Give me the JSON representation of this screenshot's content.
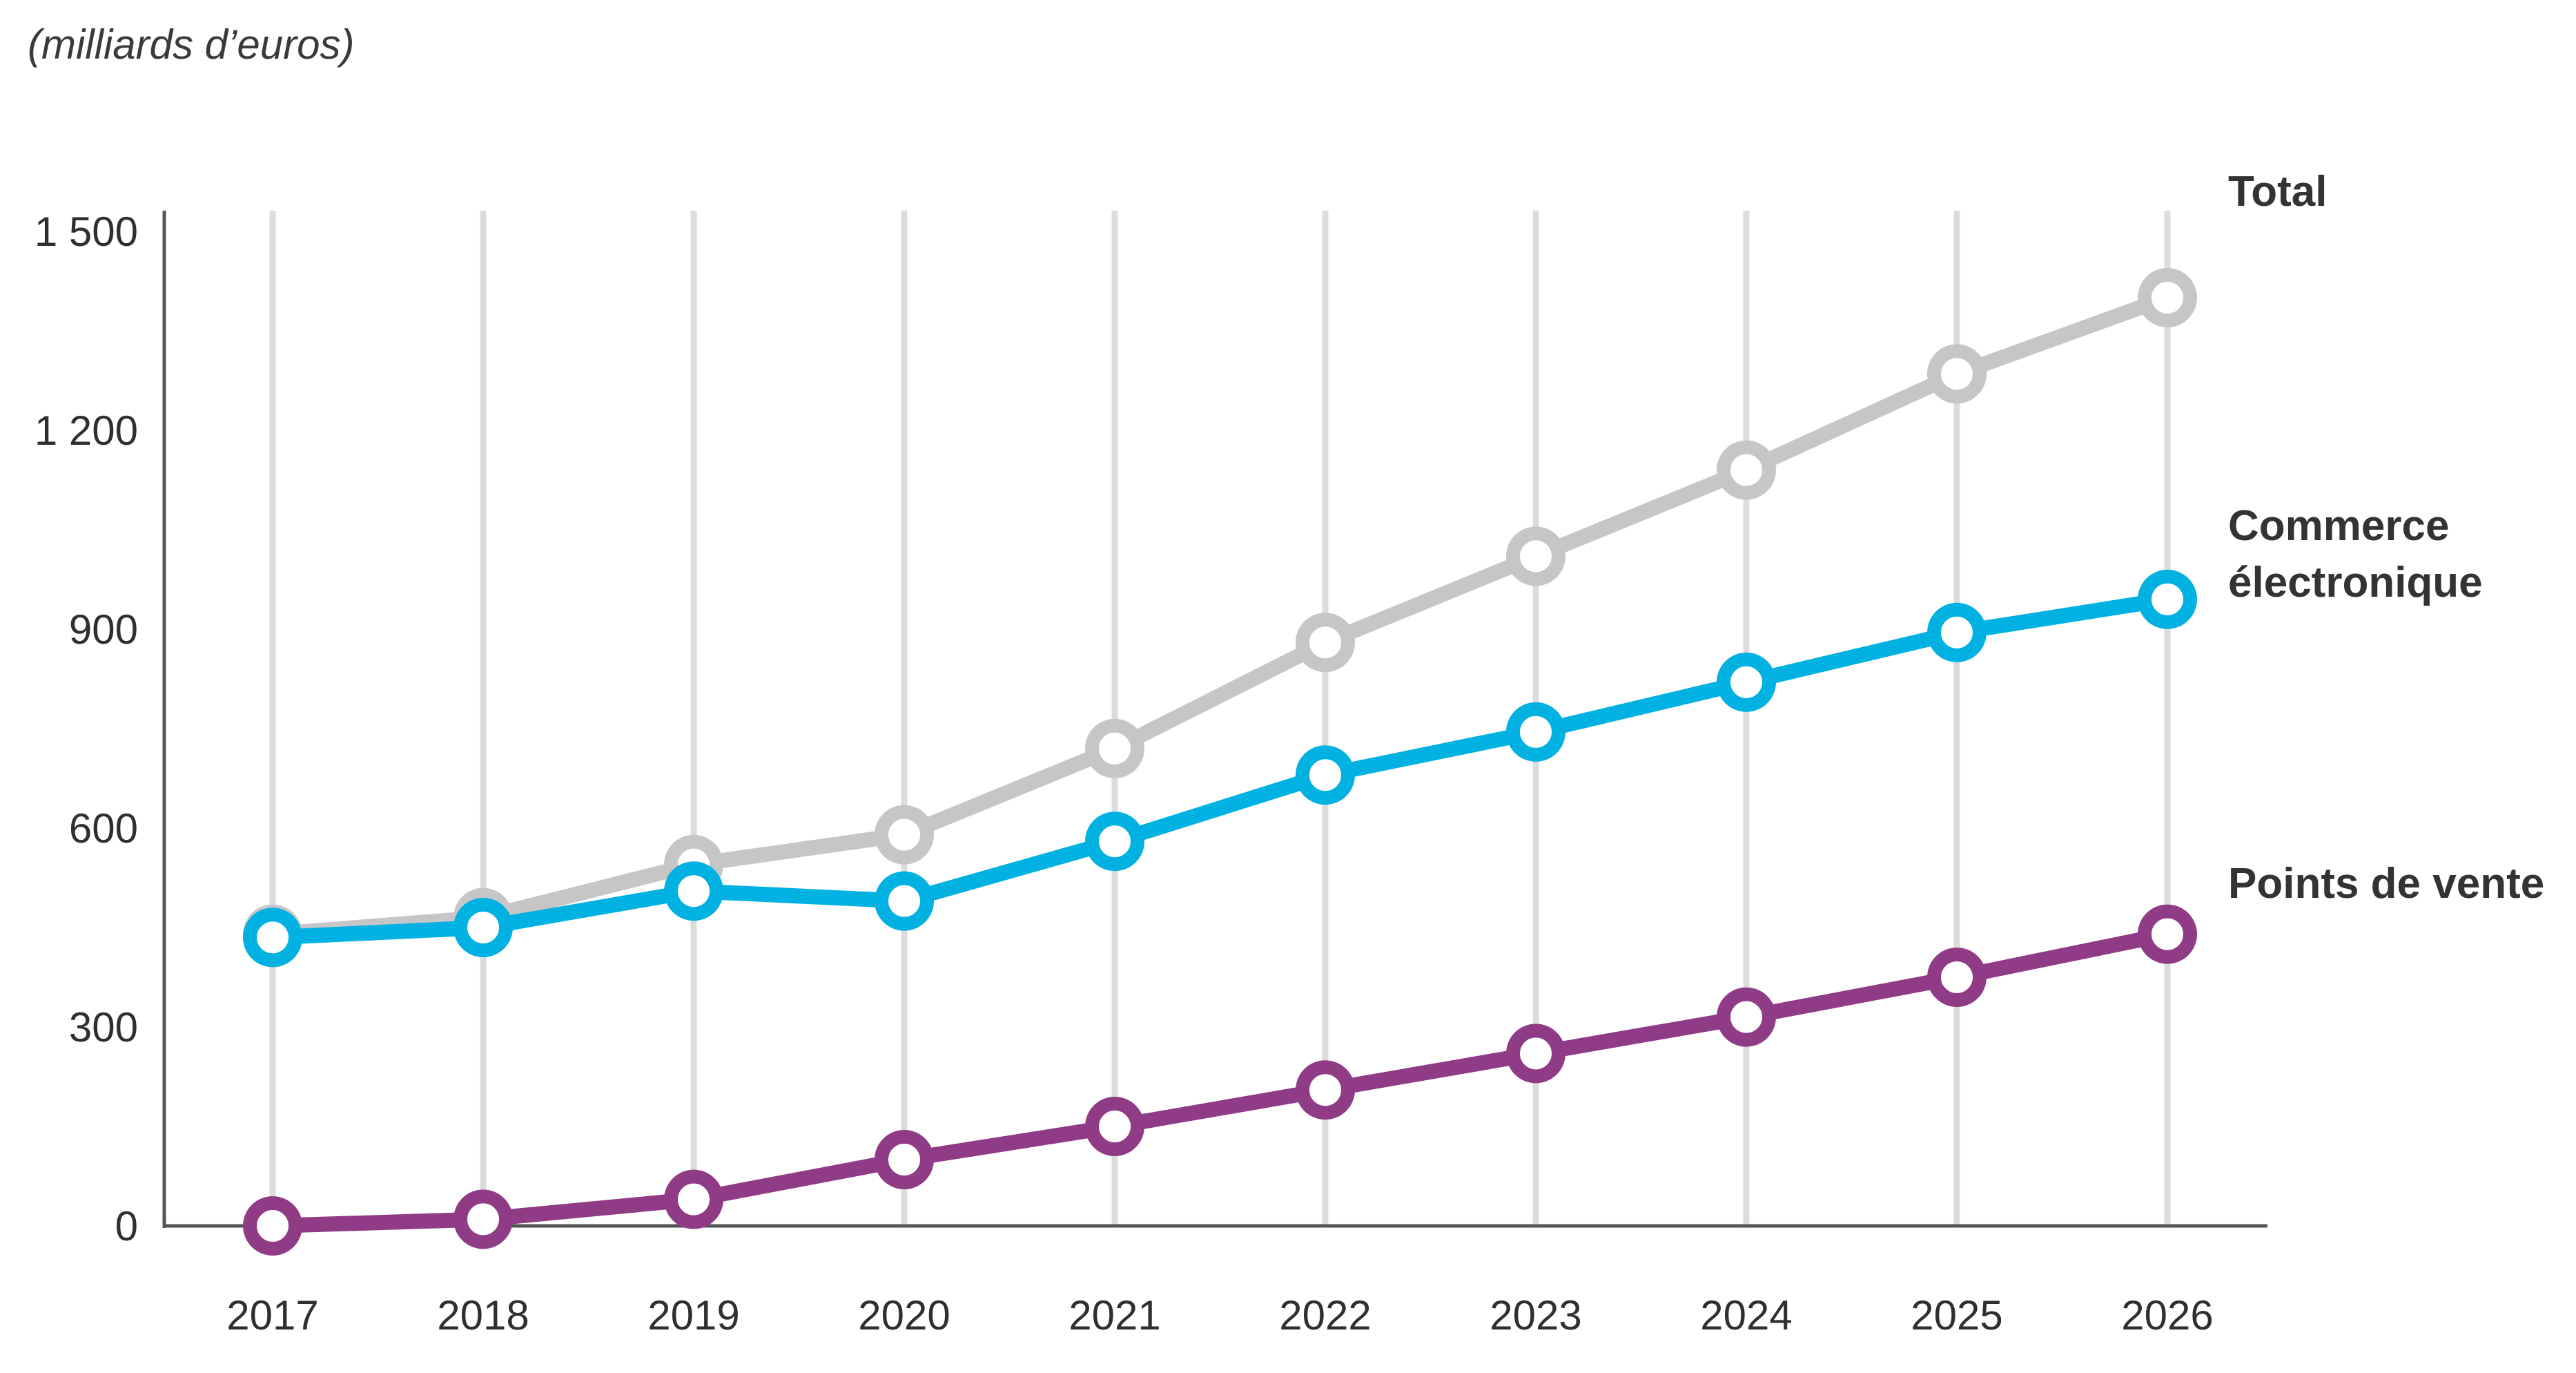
{
  "chart_data": {
    "type": "line",
    "unit_label": "(milliards d’euros)",
    "x": [
      "2017",
      "2018",
      "2019",
      "2020",
      "2021",
      "2022",
      "2023",
      "2024",
      "2025",
      "2026"
    ],
    "ylim": [
      0,
      1500
    ],
    "yticks": [
      0,
      300,
      600,
      900,
      1200,
      1500
    ],
    "ytick_labels": [
      "0",
      "300",
      "600",
      "900",
      "1 200",
      "1 500"
    ],
    "grid": "vertical",
    "series": [
      {
        "name": "Total",
        "color": "#c6c6c8",
        "values": [
          440,
          465,
          545,
          590,
          720,
          880,
          1010,
          1140,
          1285,
          1400
        ]
      },
      {
        "name_lines": [
          "Commerce",
          "électronique"
        ],
        "color": "#00b1e1",
        "values": [
          435,
          450,
          505,
          490,
          580,
          680,
          745,
          820,
          895,
          945
        ]
      },
      {
        "name": "Points de vente",
        "color": "#8f3b86",
        "values": [
          0,
          10,
          40,
          100,
          150,
          205,
          260,
          315,
          375,
          440
        ]
      }
    ]
  }
}
